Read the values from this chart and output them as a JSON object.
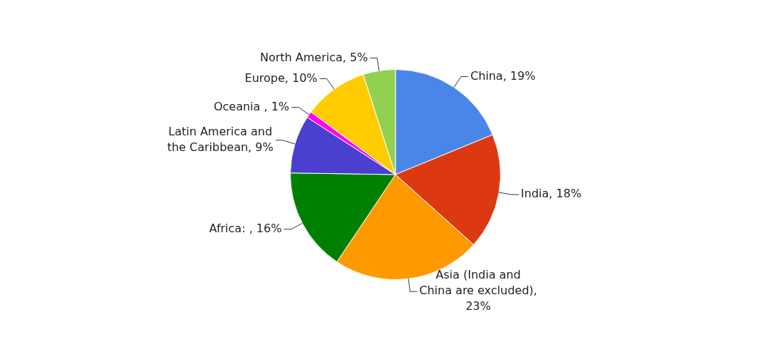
{
  "chart_data": {
    "type": "pie",
    "categories": [
      "China",
      "India",
      "Asia (India and China are excluded)",
      "Africa",
      "Latin America and the Caribbean",
      "Oceania ",
      "Europe",
      "North America"
    ],
    "values": [
      19,
      18,
      23,
      16,
      9,
      1,
      10,
      5
    ],
    "value_labels": [
      ", 19%",
      ", 18%",
      ", 23%",
      ": , 16%",
      ", 9%",
      ", 1%",
      ", 10%",
      ", 5%"
    ],
    "colors": [
      "#4a86e8",
      "#dc3912",
      "#ff9900",
      "#008000",
      "#4a3fcf",
      "#ff00ff",
      "#ffcc00",
      "#92d050"
    ],
    "legend": false
  }
}
